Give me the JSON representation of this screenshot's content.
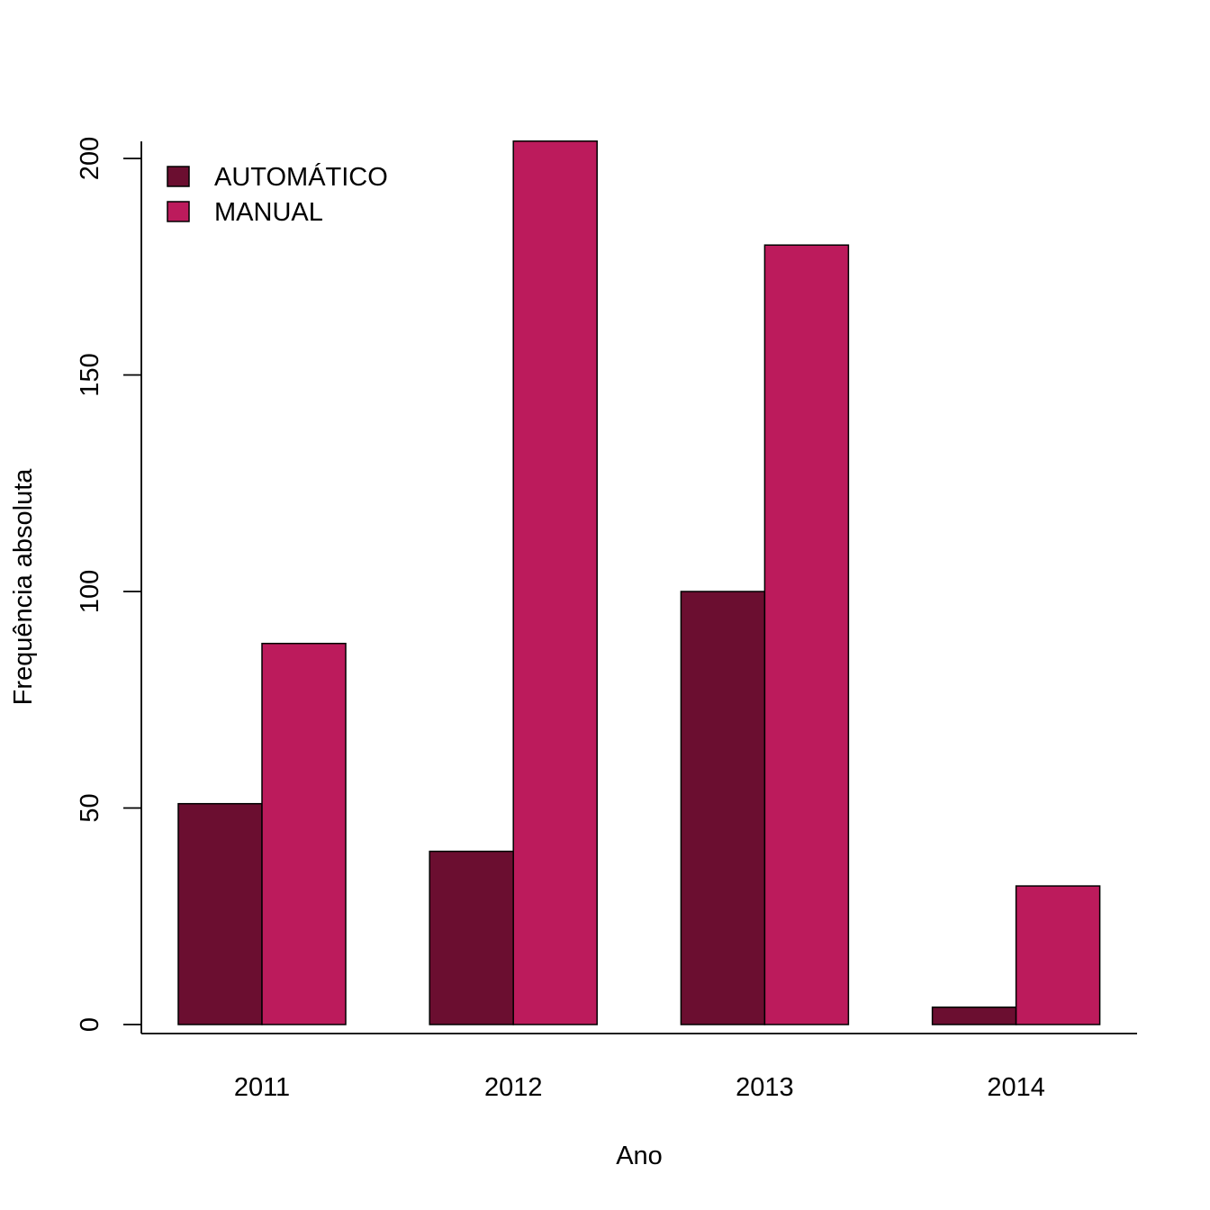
{
  "chart_data": {
    "type": "bar",
    "categories": [
      "2011",
      "2012",
      "2013",
      "2014"
    ],
    "series": [
      {
        "name": "AUTOMÁTICO",
        "values": [
          51,
          40,
          100,
          4
        ],
        "color": "#6B0E30"
      },
      {
        "name": "MANUAL",
        "values": [
          88,
          204,
          180,
          32
        ],
        "color": "#BC1B5C"
      }
    ],
    "xlabel": "Ano",
    "ylabel": "Frequência absoluta",
    "ylim": [
      0,
      204
    ],
    "yticks": [
      0,
      50,
      100,
      150,
      200
    ],
    "grid": false,
    "legend_position": "top-left"
  }
}
